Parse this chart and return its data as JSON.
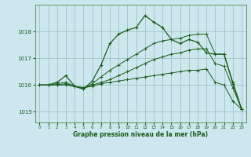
{
  "title": "Graphe pression niveau de la mer (hPa)",
  "bg_color": "#cce8ee",
  "grid_color": "#99bbbb",
  "line_color": "#1a5c1a",
  "xlim": [
    -0.5,
    23.5
  ],
  "ylim": [
    1014.6,
    1019.0
  ],
  "yticks": [
    1015,
    1016,
    1017,
    1018
  ],
  "xticks": [
    0,
    1,
    2,
    3,
    4,
    5,
    6,
    7,
    8,
    9,
    10,
    11,
    12,
    13,
    14,
    15,
    16,
    17,
    18,
    19,
    20,
    21,
    22,
    23
  ],
  "line1_x": [
    0,
    1,
    2,
    3,
    4,
    5,
    6,
    7,
    8,
    9,
    10,
    11,
    12,
    13,
    14,
    15,
    16,
    17,
    18,
    19,
    20,
    21,
    22,
    23
  ],
  "line1_y": [
    1016.0,
    1016.0,
    1016.0,
    1016.05,
    1015.95,
    1015.9,
    1015.95,
    1016.05,
    1016.1,
    1016.15,
    1016.2,
    1016.25,
    1016.3,
    1016.35,
    1016.4,
    1016.45,
    1016.5,
    1016.55,
    1016.55,
    1016.6,
    1016.1,
    1016.0,
    1015.4,
    1015.1
  ],
  "line2_x": [
    0,
    1,
    2,
    3,
    4,
    5,
    6,
    7,
    8,
    9,
    10,
    11,
    12,
    13,
    14,
    15,
    16,
    17,
    18,
    19,
    20,
    21,
    22,
    23
  ],
  "line2_y": [
    1016.0,
    1016.0,
    1016.0,
    1016.0,
    1015.95,
    1015.9,
    1016.0,
    1016.1,
    1016.2,
    1016.35,
    1016.5,
    1016.65,
    1016.8,
    1016.95,
    1017.05,
    1017.15,
    1017.2,
    1017.3,
    1017.35,
    1017.35,
    1016.8,
    1016.7,
    1015.9,
    1015.1
  ],
  "line3_x": [
    0,
    1,
    2,
    3,
    4,
    5,
    6,
    7,
    8,
    9,
    10,
    11,
    12,
    13,
    14,
    15,
    16,
    17,
    18,
    19,
    20,
    21,
    22,
    23
  ],
  "line3_y": [
    1016.0,
    1016.0,
    1016.05,
    1016.1,
    1015.95,
    1015.85,
    1016.05,
    1016.3,
    1016.55,
    1016.75,
    1016.95,
    1017.15,
    1017.35,
    1017.55,
    1017.65,
    1017.7,
    1017.75,
    1017.85,
    1017.9,
    1017.9,
    1017.15,
    1017.15,
    1016.05,
    1015.1
  ],
  "line4_x": [
    0,
    1,
    2,
    3,
    4,
    5,
    6,
    7,
    8,
    9,
    10,
    11,
    12,
    13,
    14,
    15,
    16,
    17,
    18,
    19,
    20,
    21,
    22,
    23
  ],
  "line4_y": [
    1016.0,
    1016.0,
    1016.1,
    1016.35,
    1015.95,
    1015.85,
    1016.15,
    1016.75,
    1017.55,
    1017.9,
    1018.05,
    1018.15,
    1018.6,
    1018.35,
    1018.15,
    1017.7,
    1017.55,
    1017.7,
    1017.6,
    1017.2,
    1017.15,
    1017.15,
    1016.1,
    1015.1
  ]
}
